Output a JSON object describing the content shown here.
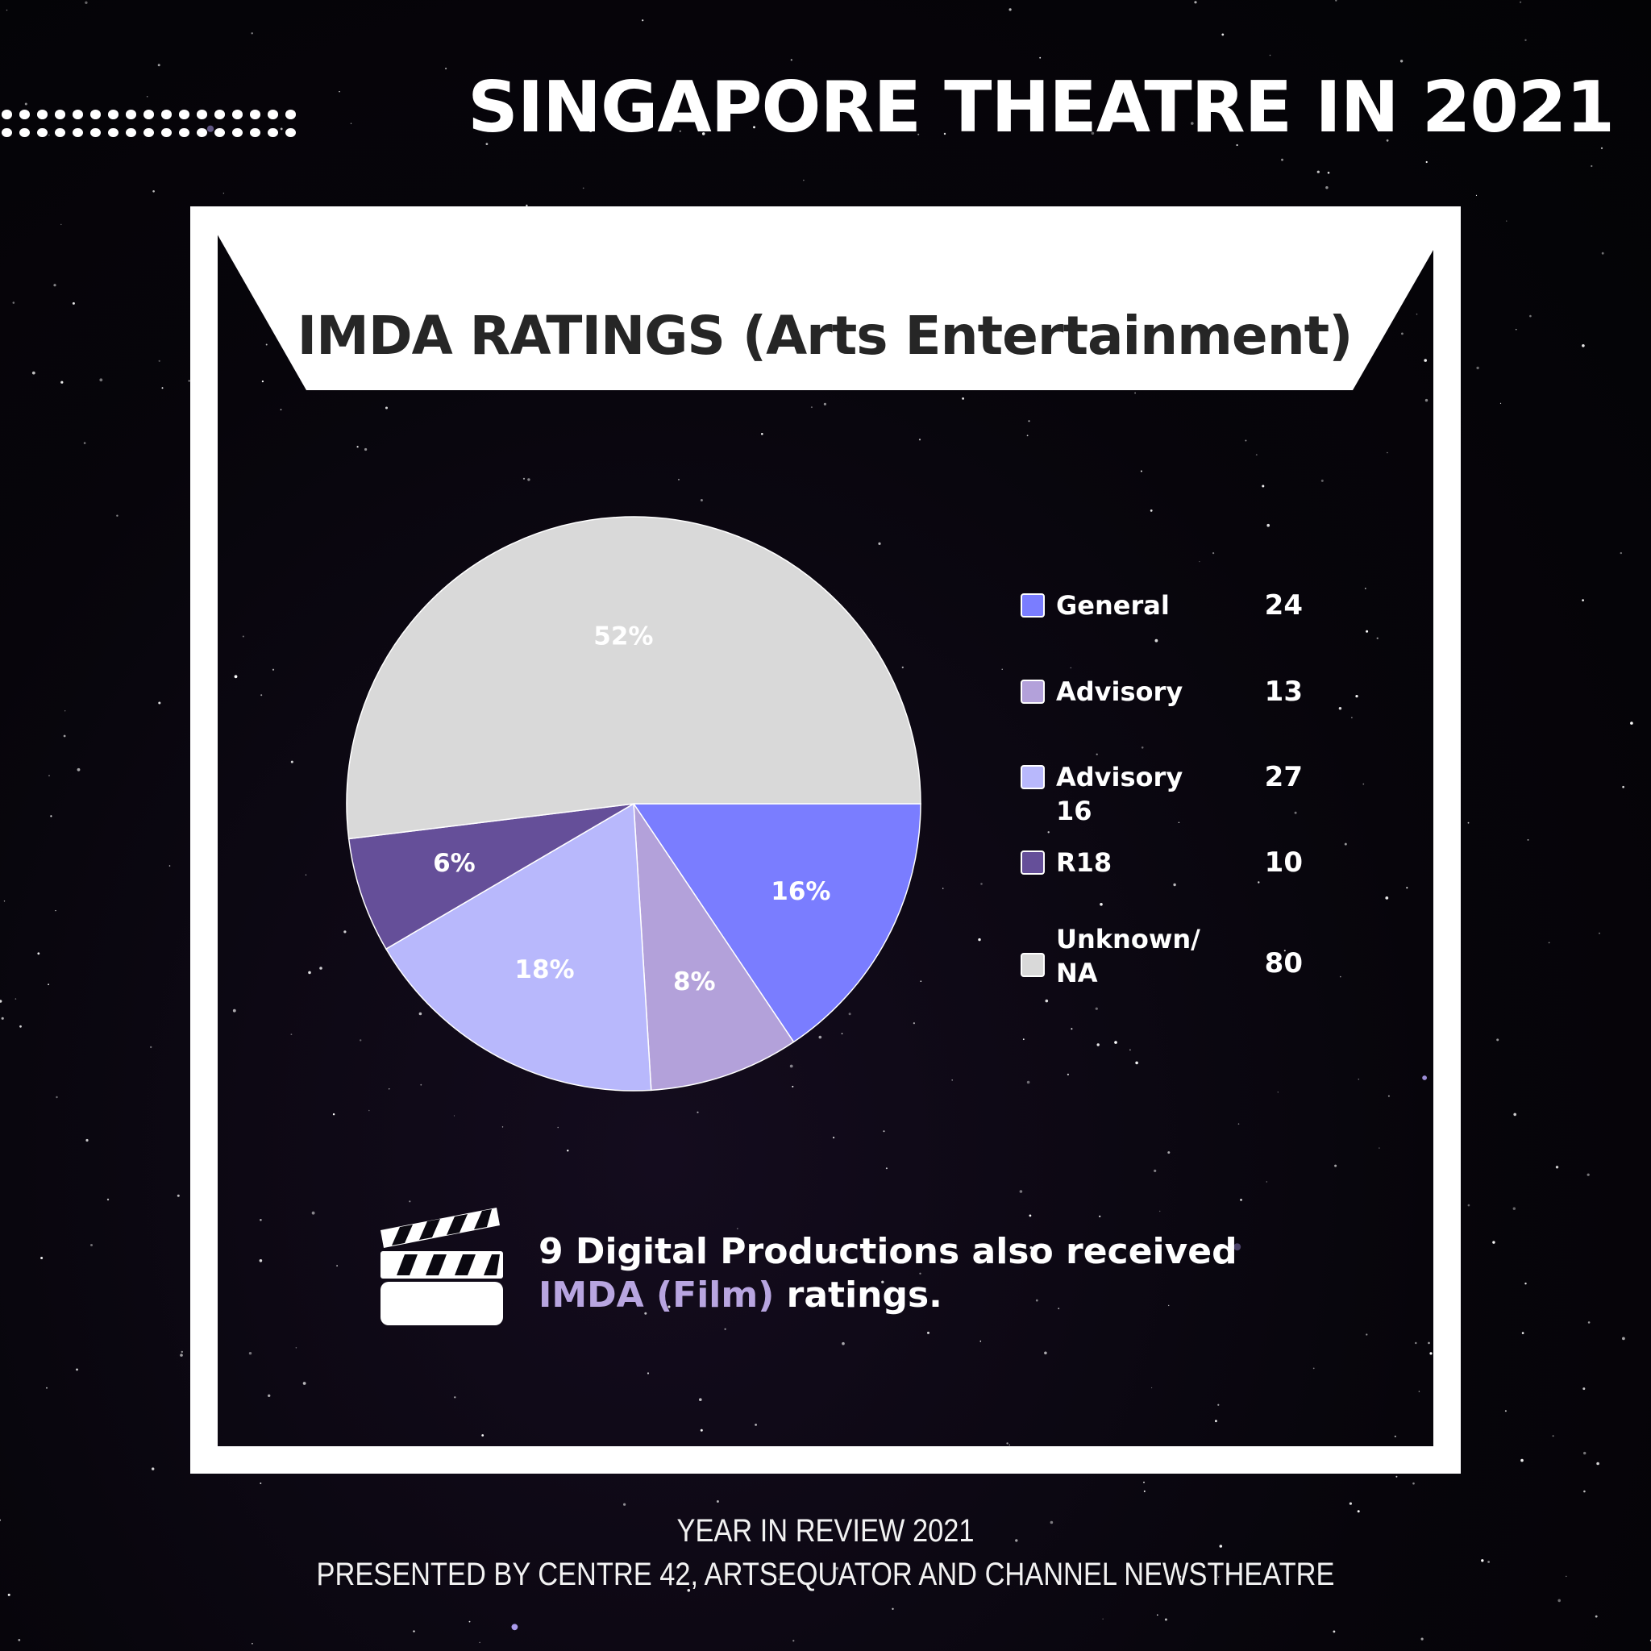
{
  "header": {
    "title": "SINGAPORE THEATRE IN 2021"
  },
  "chart_data": {
    "type": "pie",
    "title": "IMDA RATINGS (Arts Entertainment)",
    "series": [
      {
        "name": "General",
        "value": 24,
        "percent_label": "16%",
        "color": "#7a7dff"
      },
      {
        "name": "Advisory",
        "value": 13,
        "percent_label": "8%",
        "color": "#b3a1da"
      },
      {
        "name": "Advisory 16",
        "value": 27,
        "percent_label": "18%",
        "color": "#b8b8fc"
      },
      {
        "name": "R18",
        "value": 10,
        "percent_label": "6%",
        "color": "#654f99"
      },
      {
        "name": "Unknown/ NA",
        "value": 80,
        "percent_label": "52%",
        "color": "#d9d9d9"
      }
    ]
  },
  "note": {
    "icon": "clapperboard-icon",
    "text_before": "9 Digital Productions also received ",
    "highlight": "IMDA (Film)",
    "text_after": " ratings."
  },
  "footer": {
    "line1": "YEAR IN REVIEW 2021",
    "line2": "PRESENTED BY CENTRE 42, ARTSEQUATOR AND CHANNEL NEWSTHEATRE"
  },
  "colors": {
    "background": "#050408",
    "frame": "#ffffff",
    "highlight": "#b8a5e0"
  }
}
